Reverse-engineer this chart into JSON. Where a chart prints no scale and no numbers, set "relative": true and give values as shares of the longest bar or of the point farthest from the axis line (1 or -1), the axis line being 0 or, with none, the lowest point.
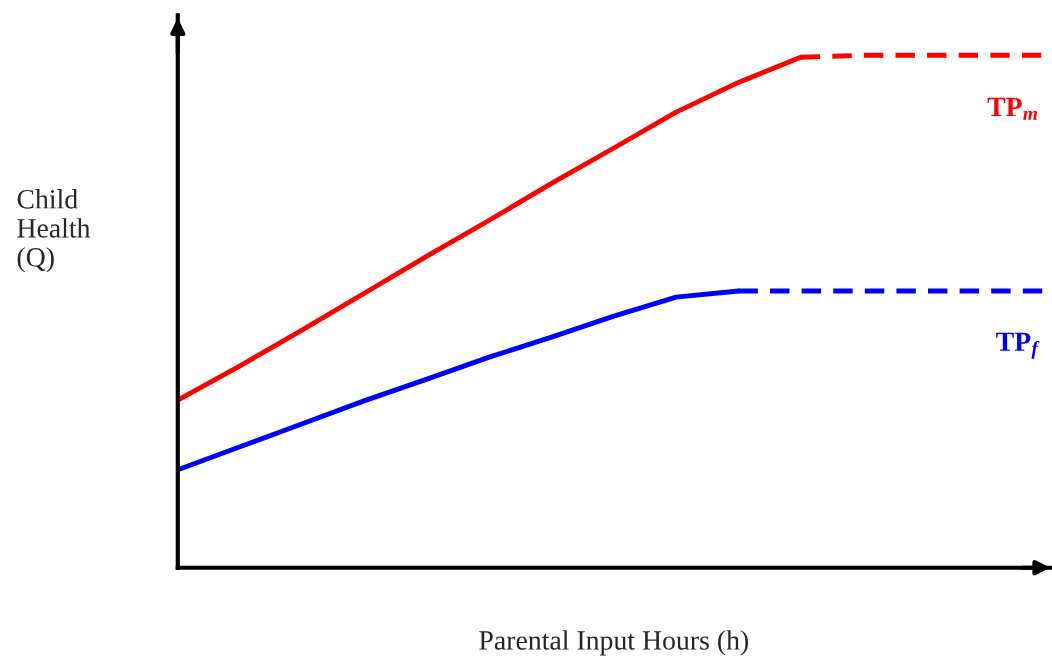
{
  "chart_data": {
    "type": "line",
    "relative": true,
    "xlabel": "Parental Input Hours (h)",
    "ylabel": "Child\nHealth\n(Q)",
    "categories": [
      null,
      null,
      null,
      null,
      null,
      null,
      null,
      null,
      null,
      null,
      null,
      null,
      null,
      null,
      null
    ],
    "series": [
      {
        "color": "#ff0000",
        "line_style": "solid",
        "values": [
          0.327,
          0.394,
          0.464,
          0.536,
          0.608,
          0.678,
          0.75,
          0.819,
          0.889,
          0.947,
          0.996,
          null,
          null,
          null,
          null
        ]
      },
      {
        "name": "TP$_{m}$",
        "color": "#ff0000",
        "line_style": "dashed",
        "values": [
          null,
          null,
          null,
          null,
          null,
          null,
          null,
          null,
          null,
          null,
          0.996,
          1,
          1,
          1,
          1
        ]
      },
      {
        "color": "#0000ff",
        "line_style": "solid",
        "values": [
          0.191,
          0.236,
          0.281,
          0.326,
          0.368,
          0.411,
          0.45,
          0.491,
          0.528,
          0.54,
          null,
          null,
          null,
          null,
          null
        ]
      },
      {
        "name": "TP$_{f}$",
        "color": "#0000ff",
        "line_style": "dashed",
        "values": [
          null,
          null,
          null,
          null,
          null,
          null,
          null,
          null,
          null,
          0.54,
          0.54,
          0.54,
          0.54,
          0.54,
          0.54
        ]
      }
    ],
    "legend": false,
    "grid": false
  }
}
